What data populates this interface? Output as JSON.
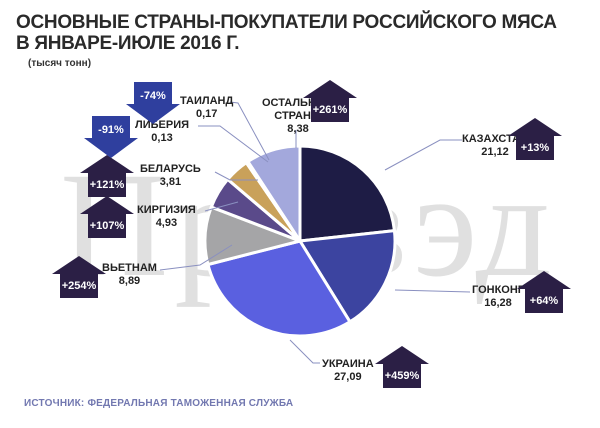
{
  "title": {
    "line1": "ОСНОВНЫЕ СТРАНЫ-ПОКУПАТЕЛИ РОССИЙСКОГО МЯСА",
    "line2": "В ЯНВАРЕ-ИЮЛЕ 2016 Г."
  },
  "units": "(тысяч тонн)",
  "watermark": "Провэд",
  "source": "ИСТОЧНИК: ФЕДЕРАЛЬНАЯ ТАМОЖЕННАЯ СЛУЖБА",
  "labels": {
    "kz": {
      "name": "КАЗАХСТАН",
      "value": "21,12",
      "change": "+13%"
    },
    "hk": {
      "name": "ГОНКОНГ",
      "value": "16,28",
      "change": "+64%"
    },
    "ua": {
      "name": "УКРАИНА",
      "value": "27,09",
      "change": "+459%"
    },
    "vn": {
      "name": "ВЬЕТНАМ",
      "value": "8,89",
      "change": "+254%"
    },
    "kg": {
      "name": "КИРГИЗИЯ",
      "value": "4,93",
      "change": "+107%"
    },
    "by": {
      "name": "БЕЛАРУСЬ",
      "value": "3,81",
      "change": "+121%"
    },
    "lr": {
      "name": "ЛИБЕРИЯ",
      "value": "0,13",
      "change": "-91%"
    },
    "th": {
      "name": "ТАИЛАНД",
      "value": "0,17",
      "change": "-74%"
    },
    "ot": {
      "name1": "ОСТАЛЬНЫЕ",
      "name2": "СТРАНЫ",
      "value": "8,38",
      "change": "+261%"
    }
  },
  "colors": {
    "up_arrow": "#2b1f45",
    "down_arrow": "#2f3f9e",
    "source_text": "#7278b0"
  },
  "chart_data": {
    "type": "pie",
    "title": "Основные страны-покупатели российского мяса в январе-июле 2016 г.",
    "subtitle": "(тысяч тонн)",
    "unit": "тысяч тонн",
    "start_angle": "12 o'clock, clockwise",
    "categories": [
      "Казахстан",
      "Гонконг",
      "Украина",
      "Вьетнам",
      "Киргизия",
      "Беларусь",
      "Либерия",
      "Таиланд",
      "Остальные страны"
    ],
    "values": [
      21.12,
      16.28,
      27.09,
      8.89,
      4.93,
      3.81,
      0.13,
      0.17,
      8.38
    ],
    "change_yoy_percent": [
      13,
      64,
      459,
      254,
      107,
      121,
      -91,
      -74,
      261
    ],
    "slice_colors": [
      "#1e1c45",
      "#3c44a0",
      "#5a60e0",
      "#a5a5a7",
      "#5a4a8a",
      "#c9a15a",
      "#6a6a9a",
      "#8a8aaa",
      "#a3a8dc"
    ],
    "source": "Федеральная таможенная служба"
  }
}
